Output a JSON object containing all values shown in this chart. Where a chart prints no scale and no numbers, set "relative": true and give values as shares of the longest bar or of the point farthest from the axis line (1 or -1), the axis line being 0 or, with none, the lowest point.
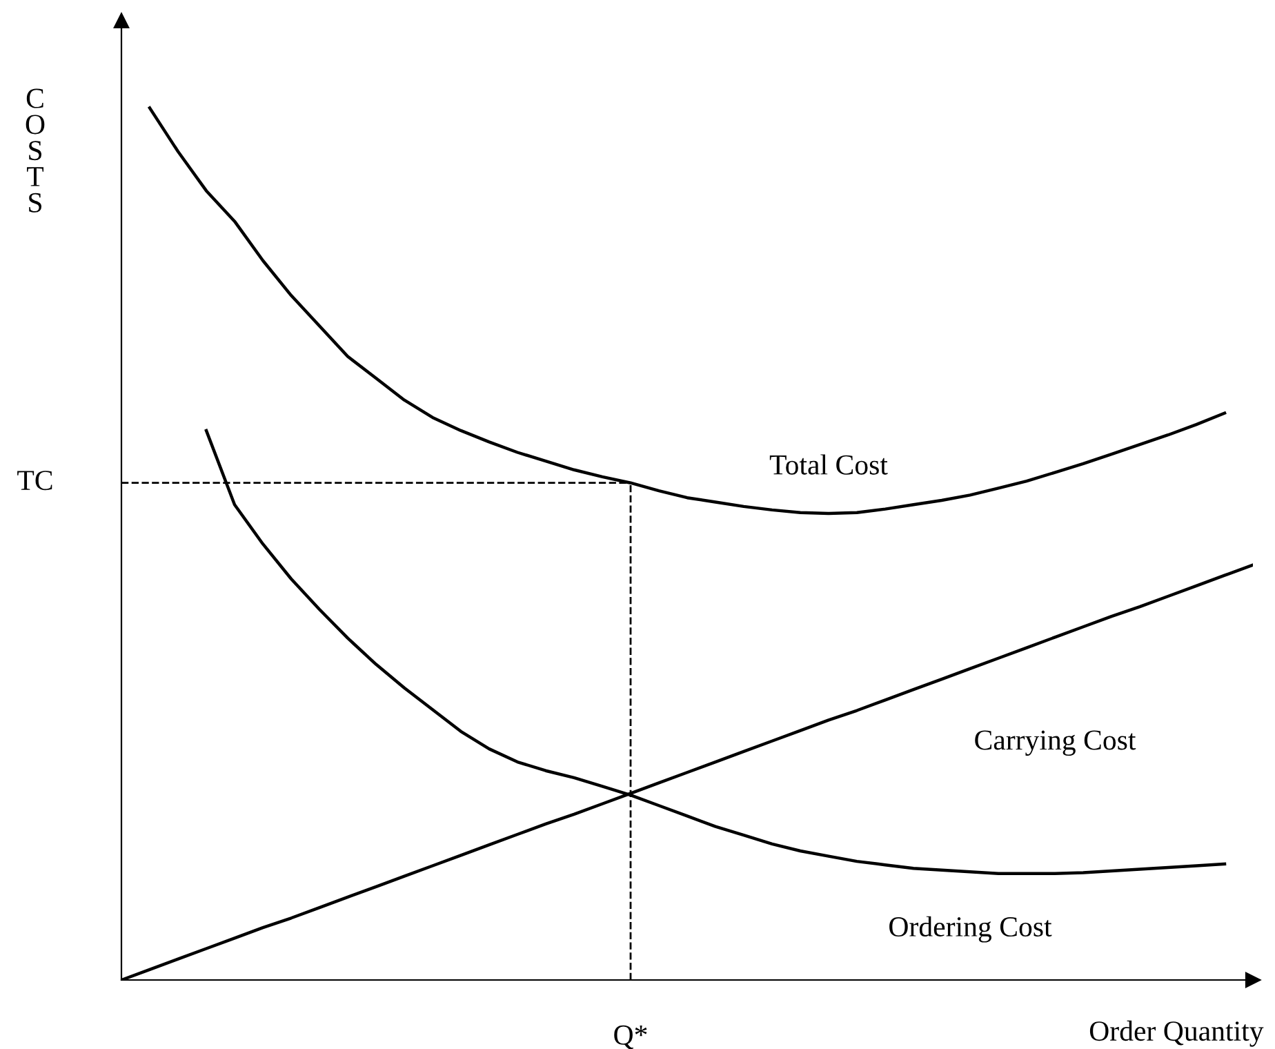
{
  "chart_data": {
    "type": "line",
    "relative": true,
    "xlabel": "Order Quantity",
    "ylabel": "COSTS",
    "categories": [
      null,
      null,
      null,
      null,
      null,
      null,
      null,
      null,
      null,
      null,
      null,
      null,
      null,
      null,
      null,
      null,
      null,
      null,
      null,
      null,
      null,
      null,
      null,
      null,
      null,
      null,
      null,
      null,
      null,
      null,
      null,
      null,
      null,
      null,
      null,
      null,
      null,
      null,
      null,
      null,
      null
    ],
    "series": [
      {
        "name": "Total Cost",
        "color": "#000000",
        "values": [
          null,
          1.0,
          0.95,
          0.905,
          0.87,
          0.825,
          0.785,
          0.75,
          0.715,
          0.69,
          0.665,
          0.645,
          0.63,
          0.617,
          0.605,
          0.595,
          0.585,
          0.577,
          0.57,
          0.561,
          0.553,
          0.548,
          0.543,
          0.539,
          0.536,
          0.535,
          0.536,
          0.54,
          0.545,
          0.55,
          0.556,
          0.564,
          0.572,
          0.582,
          0.592,
          0.603,
          0.614,
          0.625,
          0.637,
          0.65,
          null
        ]
      },
      {
        "name": "Carrying Cost",
        "color": "#000000",
        "values": [
          0,
          0.012,
          0.024,
          0.036,
          0.048,
          0.06,
          0.071,
          0.083,
          0.095,
          0.107,
          0.119,
          0.131,
          0.143,
          0.155,
          0.167,
          0.179,
          0.19,
          0.202,
          0.214,
          0.226,
          0.238,
          0.25,
          0.262,
          0.274,
          0.286,
          0.298,
          0.309,
          0.321,
          0.333,
          0.345,
          0.357,
          0.369,
          0.381,
          0.393,
          0.405,
          0.417,
          0.428,
          0.44,
          0.452,
          0.464,
          0.476
        ]
      },
      {
        "name": "Ordering Cost",
        "color": "#000000",
        "values": [
          null,
          null,
          null,
          0.63,
          0.545,
          0.5,
          0.46,
          0.425,
          0.392,
          0.362,
          0.335,
          0.31,
          0.285,
          0.265,
          0.25,
          0.24,
          0.232,
          0.222,
          0.212,
          0.2,
          0.188,
          0.176,
          0.166,
          0.156,
          0.148,
          0.142,
          0.136,
          0.132,
          0.128,
          0.126,
          0.124,
          0.122,
          0.122,
          0.122,
          0.123,
          0.125,
          0.127,
          0.129,
          0.131,
          0.133,
          null
        ]
      }
    ],
    "annotations": [
      "Q*"
    ],
    "ref_lines": [
      {
        "axis": "y",
        "value": 0.57,
        "label": "TC",
        "line_style": "dashed",
        "color": "#000000"
      }
    ],
    "legend": false,
    "marker": "none",
    "line_style": "solid"
  }
}
